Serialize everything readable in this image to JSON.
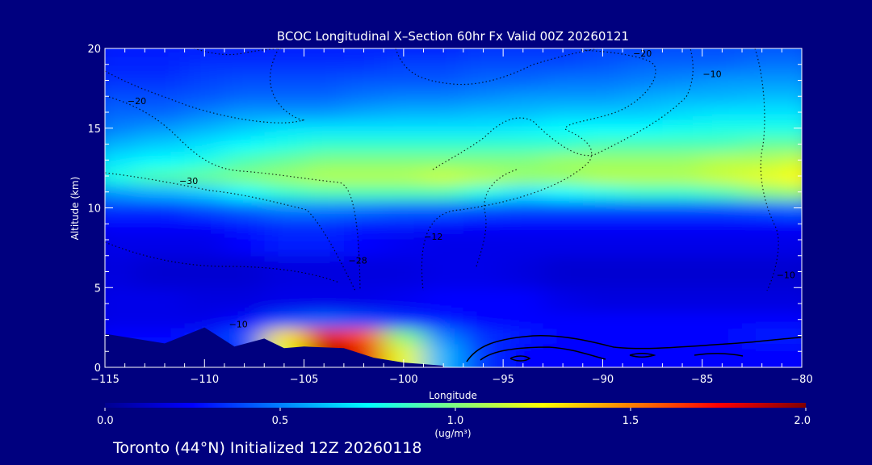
{
  "chart_data": {
    "type": "heatmap",
    "title": "BCOC Longitudinal X–Section 60hr  Fx Valid 00Z 20260121",
    "xlabel": "Longitude",
    "ylabel": "Altitude (km)",
    "xlim": [
      -115,
      -80
    ],
    "ylim": [
      0,
      20
    ],
    "x_ticks": [
      -115,
      -110,
      -105,
      -100,
      -95,
      -90,
      -85,
      -80
    ],
    "x_tick_labels": [
      "−115",
      "−110",
      "−105",
      "−100",
      "−95",
      "−90",
      "−85",
      "−80"
    ],
    "y_ticks": [
      0,
      5,
      10,
      15,
      20
    ],
    "y_tick_labels": [
      "0",
      "5",
      "10",
      "15",
      "20"
    ],
    "colorbar": {
      "label": "(ug/m³)",
      "range": [
        0.0,
        2.0
      ],
      "ticks": [
        0.0,
        0.5,
        1.0,
        1.5,
        2.0
      ],
      "tick_labels": [
        "0.0",
        "0.5",
        "1.0",
        "1.5",
        "2.0"
      ]
    },
    "field_columns_longitude": [
      -115,
      -112,
      -110,
      -108,
      -106,
      -104,
      -102,
      -100,
      -98,
      -96,
      -94,
      -92,
      -90,
      -88,
      -86,
      -84,
      -82,
      -80
    ],
    "field_rows_altitude_km": [
      1,
      2,
      3,
      4,
      6,
      8,
      9,
      10,
      11,
      12,
      13,
      14,
      15,
      16,
      17,
      18,
      19,
      20
    ],
    "field_values": [
      [
        0.3,
        0.3,
        0.3,
        0.35,
        1.2,
        1.9,
        1.8,
        1.2,
        0.6,
        0.35,
        0.25,
        0.25,
        0.25,
        0.25,
        0.25,
        0.25,
        0.25,
        0.25
      ],
      [
        0.25,
        0.25,
        0.3,
        0.4,
        1.3,
        1.8,
        1.6,
        1.0,
        0.5,
        0.35,
        0.3,
        0.25,
        0.25,
        0.25,
        0.25,
        0.25,
        0.3,
        0.3
      ],
      [
        0.2,
        0.2,
        0.2,
        0.25,
        0.4,
        0.45,
        0.4,
        0.35,
        0.3,
        0.25,
        0.25,
        0.25,
        0.25,
        0.25,
        0.25,
        0.25,
        0.25,
        0.25
      ],
      [
        0.2,
        0.2,
        0.18,
        0.18,
        0.2,
        0.2,
        0.2,
        0.22,
        0.25,
        0.25,
        0.25,
        0.2,
        0.18,
        0.18,
        0.18,
        0.18,
        0.18,
        0.18
      ],
      [
        0.18,
        0.15,
        0.15,
        0.15,
        0.18,
        0.18,
        0.18,
        0.18,
        0.2,
        0.2,
        0.18,
        0.15,
        0.15,
        0.15,
        0.15,
        0.15,
        0.15,
        0.15
      ],
      [
        0.2,
        0.2,
        0.2,
        0.25,
        0.3,
        0.3,
        0.25,
        0.22,
        0.2,
        0.2,
        0.2,
        0.2,
        0.2,
        0.2,
        0.2,
        0.2,
        0.2,
        0.2
      ],
      [
        0.25,
        0.25,
        0.25,
        0.3,
        0.35,
        0.35,
        0.3,
        0.3,
        0.28,
        0.25,
        0.25,
        0.25,
        0.25,
        0.25,
        0.25,
        0.25,
        0.25,
        0.25
      ],
      [
        0.35,
        0.35,
        0.4,
        0.45,
        0.5,
        0.5,
        0.48,
        0.45,
        0.45,
        0.42,
        0.4,
        0.4,
        0.4,
        0.4,
        0.4,
        0.4,
        0.42,
        0.45
      ],
      [
        0.55,
        0.6,
        0.65,
        0.75,
        0.85,
        0.9,
        0.9,
        0.9,
        0.9,
        0.8,
        0.7,
        0.75,
        0.8,
        0.85,
        0.85,
        0.9,
        1.0,
        1.05
      ],
      [
        0.8,
        0.9,
        0.95,
        1.0,
        1.05,
        1.1,
        1.1,
        1.1,
        1.15,
        1.1,
        1.05,
        1.05,
        1.1,
        1.1,
        1.1,
        1.15,
        1.2,
        1.25
      ],
      [
        0.7,
        0.75,
        0.8,
        0.9,
        0.95,
        1.0,
        1.0,
        1.0,
        1.0,
        1.0,
        1.0,
        1.05,
        1.05,
        1.05,
        1.05,
        1.1,
        1.1,
        1.15
      ],
      [
        0.6,
        0.65,
        0.7,
        0.75,
        0.8,
        0.85,
        0.85,
        0.85,
        0.85,
        0.85,
        0.85,
        0.85,
        0.9,
        0.9,
        0.9,
        0.9,
        0.95,
        0.95
      ],
      [
        0.5,
        0.55,
        0.6,
        0.65,
        0.7,
        0.7,
        0.7,
        0.7,
        0.7,
        0.7,
        0.72,
        0.75,
        0.75,
        0.75,
        0.78,
        0.8,
        0.8,
        0.8
      ],
      [
        0.45,
        0.45,
        0.5,
        0.55,
        0.55,
        0.55,
        0.58,
        0.6,
        0.6,
        0.62,
        0.62,
        0.65,
        0.65,
        0.65,
        0.68,
        0.7,
        0.7,
        0.7
      ],
      [
        0.4,
        0.4,
        0.42,
        0.45,
        0.45,
        0.45,
        0.48,
        0.5,
        0.5,
        0.52,
        0.55,
        0.55,
        0.55,
        0.58,
        0.6,
        0.6,
        0.62,
        0.62
      ],
      [
        0.35,
        0.35,
        0.38,
        0.4,
        0.4,
        0.4,
        0.42,
        0.42,
        0.42,
        0.45,
        0.45,
        0.48,
        0.48,
        0.5,
        0.52,
        0.55,
        0.55,
        0.55
      ],
      [
        0.32,
        0.32,
        0.35,
        0.35,
        0.35,
        0.35,
        0.35,
        0.38,
        0.38,
        0.4,
        0.4,
        0.4,
        0.42,
        0.45,
        0.45,
        0.45,
        0.48,
        0.48
      ],
      [
        0.3,
        0.3,
        0.3,
        0.3,
        0.3,
        0.3,
        0.32,
        0.32,
        0.32,
        0.35,
        0.35,
        0.35,
        0.38,
        0.38,
        0.4,
        0.4,
        0.42,
        0.42
      ]
    ],
    "terrain": {
      "longitude": [
        -115,
        -112,
        -110,
        -108.5,
        -107,
        -106,
        -105,
        -103,
        -101.5,
        -100,
        -98
      ],
      "altitude_km": [
        2.1,
        1.5,
        2.5,
        1.3,
        1.8,
        1.2,
        1.3,
        1.2,
        0.6,
        0.3,
        0.1
      ]
    },
    "contour_labels": [
      {
        "text": "−20",
        "lon": -113.4,
        "alt": 16.5
      },
      {
        "text": "−30",
        "lon": -110.8,
        "alt": 11.5
      },
      {
        "text": "−10",
        "lon": -108.3,
        "alt": 2.5
      },
      {
        "text": "−20",
        "lon": -88.0,
        "alt": 19.5
      },
      {
        "text": "−10",
        "lon": -84.5,
        "alt": 18.2
      },
      {
        "text": "−10",
        "lon": -80.8,
        "alt": 5.6
      },
      {
        "text": "−28",
        "lon": -102.3,
        "alt": 6.5
      },
      {
        "text": "−12",
        "lon": -98.5,
        "alt": 8.0
      }
    ]
  },
  "footer": {
    "station": "Toronto (44°N) Initialized 12Z 20260118"
  },
  "colors": {
    "background": "#00007f",
    "text": "#ffffff",
    "colormap": [
      "#00008f",
      "#0000ff",
      "#0080ff",
      "#00ffff",
      "#80ff80",
      "#ffff00",
      "#ff8000",
      "#ff0000",
      "#800000"
    ]
  }
}
